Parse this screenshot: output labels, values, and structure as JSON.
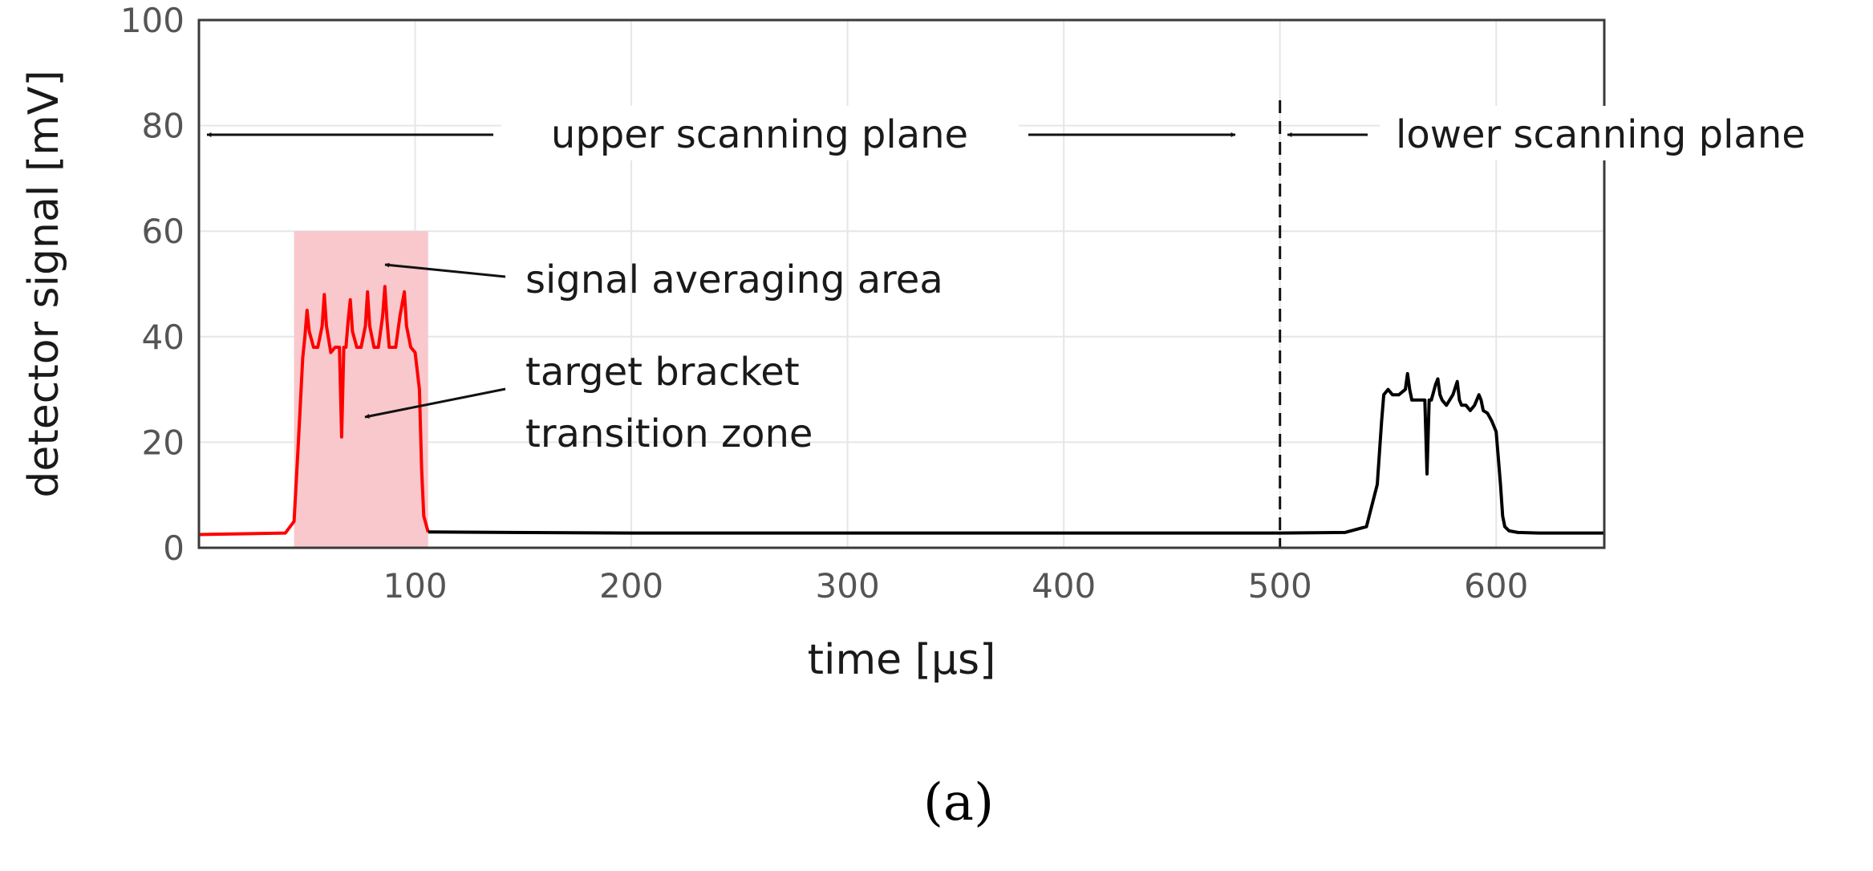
{
  "chart_data": {
    "type": "line",
    "xlabel": "time [µs]",
    "ylabel": "detector signal [mV]",
    "xlim": [
      0,
      650
    ],
    "ylim": [
      0,
      100
    ],
    "xticks": [
      100,
      200,
      300,
      400,
      500,
      600
    ],
    "yticks": [
      0,
      20,
      40,
      60,
      80,
      100
    ],
    "grid": true,
    "series": [
      {
        "color": "#ff0000",
        "x": [
          0,
          40,
          44,
          46,
          48,
          49,
          50,
          51,
          53,
          55,
          57,
          58,
          59,
          61,
          63,
          65,
          66,
          67,
          68,
          69,
          70,
          71,
          73,
          75,
          77,
          78,
          79,
          81,
          83,
          85,
          86,
          87,
          88,
          89,
          91,
          93,
          95,
          96,
          98,
          100,
          102,
          103,
          104,
          106
        ],
        "y": [
          2.5,
          2.8,
          5,
          20,
          36,
          40,
          45,
          41,
          38,
          38,
          42,
          48,
          42,
          37,
          38,
          38,
          21,
          38,
          38,
          43,
          47,
          41,
          38,
          38,
          42,
          48.5,
          42,
          38,
          38,
          44,
          49.5,
          43,
          38,
          38,
          38,
          44,
          48.5,
          42,
          38,
          37,
          30,
          15,
          6,
          3
        ]
      },
      {
        "color": "#000000",
        "x": [
          106,
          200,
          300,
          400,
          500,
          530,
          540,
          545,
          547,
          548,
          550,
          552,
          555,
          558,
          559,
          560,
          561,
          563,
          565,
          567,
          568,
          569,
          570,
          572,
          573,
          574,
          575,
          577,
          580,
          582,
          583,
          584,
          586,
          588,
          590,
          592,
          593,
          594,
          596,
          598,
          600,
          602,
          603,
          604,
          606,
          610,
          620,
          650
        ],
        "y": [
          3,
          2.8,
          2.8,
          2.8,
          2.8,
          2.9,
          4,
          12,
          24,
          29,
          30,
          29,
          29,
          30,
          33,
          30,
          28,
          28,
          28,
          28,
          14,
          28,
          28,
          31,
          32,
          29,
          28,
          27,
          29,
          31.5,
          28,
          27,
          27,
          26,
          27,
          29,
          28,
          26,
          25.5,
          24,
          22,
          12,
          6,
          4,
          3.2,
          2.9,
          2.8,
          2.8
        ]
      }
    ],
    "shaded_region": {
      "x": [
        44,
        106
      ],
      "y": [
        0,
        60
      ],
      "color": "#f8c8cc"
    },
    "vertical_line": {
      "x": 500,
      "style": "dashed"
    },
    "annotations": {
      "upper_plane": "upper scanning plane",
      "lower_plane": "lower scanning plane",
      "averaging": "signal averaging area",
      "bracket_line1": "target bracket",
      "bracket_line2": "transition zone"
    },
    "panel_label": "(a)"
  }
}
